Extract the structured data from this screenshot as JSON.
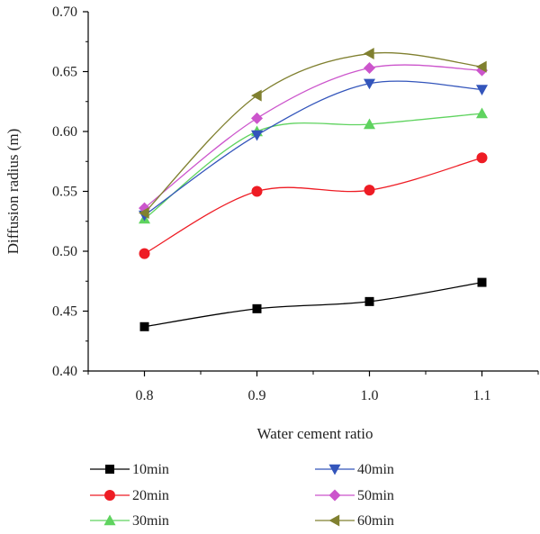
{
  "chart_data": {
    "type": "line",
    "xlabel": "Water cement ratio",
    "ylabel": "Diffusion radius (m)",
    "x": [
      0.8,
      0.9,
      1.0,
      1.1
    ],
    "x_tick_labels": [
      "0.8",
      "0.9",
      "1.0",
      "1.1"
    ],
    "xlim": [
      0.75,
      1.15
    ],
    "ylim": [
      0.4,
      0.7
    ],
    "y_ticks": [
      0.4,
      0.45,
      0.5,
      0.55,
      0.6,
      0.65,
      0.7
    ],
    "y_tick_labels": [
      "0.40",
      "0.45",
      "0.50",
      "0.55",
      "0.60",
      "0.65",
      "0.70"
    ],
    "grid": false,
    "legend_position": "bottom",
    "series": [
      {
        "name": "10min",
        "values": [
          0.437,
          0.452,
          0.458,
          0.474
        ],
        "color": "#000000",
        "marker": "square"
      },
      {
        "name": "20min",
        "values": [
          0.498,
          0.55,
          0.551,
          0.578
        ],
        "color": "#ee1c24",
        "marker": "circle"
      },
      {
        "name": "30min",
        "values": [
          0.527,
          0.6,
          0.606,
          0.615
        ],
        "color": "#5fd35f",
        "marker": "triangle-up"
      },
      {
        "name": "40min",
        "values": [
          0.53,
          0.597,
          0.64,
          0.635
        ],
        "color": "#3355bb",
        "marker": "triangle-down"
      },
      {
        "name": "50min",
        "values": [
          0.536,
          0.611,
          0.653,
          0.651
        ],
        "color": "#cc55cc",
        "marker": "diamond"
      },
      {
        "name": "60min",
        "values": [
          0.532,
          0.63,
          0.665,
          0.654
        ],
        "color": "#808030",
        "marker": "triangle-left"
      }
    ]
  }
}
